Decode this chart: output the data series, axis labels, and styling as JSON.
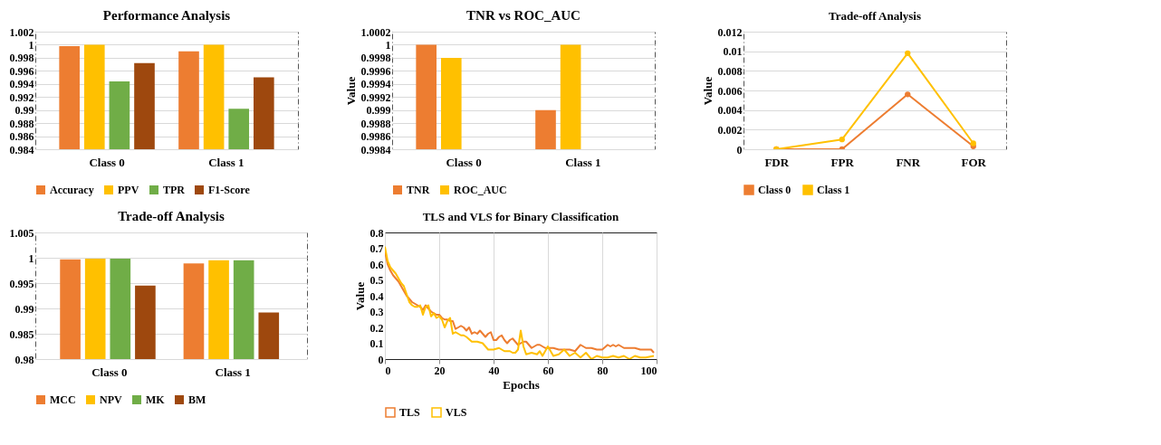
{
  "chart_data": [
    {
      "type": "bar",
      "title": "Performance Analysis",
      "categories": [
        "Class 0",
        "Class 1"
      ],
      "series": [
        {
          "name": "Accuracy",
          "color": "#ed7d31",
          "values": [
            0.9998,
            0.999
          ]
        },
        {
          "name": "PPV",
          "color": "#ffc000",
          "values": [
            1,
            1
          ]
        },
        {
          "name": "TPR",
          "color": "#70ad47",
          "values": [
            0.9944,
            0.9902
          ]
        },
        {
          "name": "F1-Score",
          "color": "#9e480e",
          "values": [
            0.9972,
            0.995
          ]
        }
      ],
      "ylim": [
        0.984,
        1.002
      ],
      "yticks": [
        0.984,
        0.986,
        0.988,
        0.99,
        0.992,
        0.994,
        0.996,
        0.998,
        1,
        1.002
      ],
      "grid": "y",
      "legend": "bottom"
    },
    {
      "type": "bar",
      "title": "TNR vs ROC_AUC",
      "ylabel": "Value",
      "categories": [
        "Class 0",
        "Class 1"
      ],
      "series": [
        {
          "name": "TNR",
          "color": "#ed7d31",
          "values": [
            1,
            0.999
          ]
        },
        {
          "name": "ROC_AUC",
          "color": "#ffc000",
          "values": [
            0.9998,
            1
          ]
        }
      ],
      "ylim": [
        0.9984,
        1.0002
      ],
      "yticks": [
        0.9984,
        0.9986,
        0.9988,
        0.999,
        0.9992,
        0.9994,
        0.9996,
        0.9998,
        1,
        1.0002
      ],
      "grid": "y",
      "legend": "bottom"
    },
    {
      "type": "line",
      "title": "Trade-off Analysis",
      "ylabel": "Value",
      "categories": [
        "FDR",
        "FPR",
        "FNR",
        "FOR"
      ],
      "series": [
        {
          "name": "Class 0",
          "color": "#ed7d31",
          "values": [
            0,
            0,
            0.0056,
            0.0003
          ]
        },
        {
          "name": "Class 1",
          "color": "#ffc000",
          "values": [
            0,
            0.001,
            0.0098,
            0.0006
          ]
        }
      ],
      "ylim": [
        0,
        0.012
      ],
      "yticks": [
        0,
        0.002,
        0.004,
        0.006,
        0.008,
        0.01,
        0.012
      ],
      "grid": "y",
      "legend": "bottom",
      "marker": "circle"
    },
    {
      "type": "bar",
      "title": "Trade-off Analysis",
      "categories": [
        "Class 0",
        "Class 1"
      ],
      "series": [
        {
          "name": "MCC",
          "color": "#ed7d31",
          "values": [
            0.9997,
            0.9989
          ]
        },
        {
          "name": "NPV",
          "color": "#ffc000",
          "values": [
            0.9998,
            0.9995
          ]
        },
        {
          "name": "MK",
          "color": "#70ad47",
          "values": [
            0.9998,
            0.9995
          ]
        },
        {
          "name": "BM",
          "color": "#9e480e",
          "values": [
            0.9945,
            0.9892
          ]
        }
      ],
      "ylim": [
        0.98,
        1.005
      ],
      "yticks": [
        0.98,
        0.985,
        0.99,
        0.995,
        1,
        1.005
      ],
      "grid": "y",
      "legend": "bottom"
    },
    {
      "type": "line",
      "title": "TLS and VLS for Binary Classification",
      "xlabel": "Epochs",
      "ylabel": "Value",
      "series": [
        {
          "name": "TLS",
          "color": "#ed7d31",
          "x": [
            0,
            1,
            2,
            3,
            4,
            5,
            6,
            7,
            8,
            9,
            10,
            11,
            12,
            13,
            14,
            15,
            16,
            17,
            18,
            19,
            20,
            21,
            22,
            23,
            24,
            25,
            26,
            27,
            28,
            29,
            30,
            31,
            32,
            33,
            34,
            35,
            36,
            37,
            38,
            39,
            40,
            41,
            42,
            43,
            44,
            45,
            46,
            47,
            48,
            49,
            50,
            51,
            52,
            53,
            54,
            55,
            56,
            57,
            58,
            59,
            60,
            62,
            64,
            66,
            68,
            70,
            72,
            73,
            74,
            76,
            78,
            80,
            82,
            83,
            84,
            85,
            86,
            88,
            90,
            92,
            94,
            96,
            98,
            99
          ],
          "values": [
            0.68,
            0.6,
            0.56,
            0.53,
            0.51,
            0.49,
            0.46,
            0.43,
            0.4,
            0.38,
            0.36,
            0.35,
            0.34,
            0.33,
            0.31,
            0.34,
            0.32,
            0.3,
            0.29,
            0.28,
            0.28,
            0.26,
            0.25,
            0.25,
            0.24,
            0.24,
            0.19,
            0.2,
            0.21,
            0.2,
            0.18,
            0.2,
            0.16,
            0.17,
            0.16,
            0.18,
            0.16,
            0.14,
            0.16,
            0.17,
            0.12,
            0.12,
            0.14,
            0.15,
            0.12,
            0.1,
            0.12,
            0.13,
            0.11,
            0.09,
            0.1,
            0.11,
            0.11,
            0.09,
            0.07,
            0.08,
            0.09,
            0.09,
            0.08,
            0.07,
            0.07,
            0.07,
            0.06,
            0.06,
            0.06,
            0.05,
            0.09,
            0.08,
            0.07,
            0.07,
            0.06,
            0.06,
            0.09,
            0.08,
            0.09,
            0.08,
            0.09,
            0.07,
            0.07,
            0.07,
            0.06,
            0.06,
            0.06,
            0.04
          ]
        },
        {
          "name": "VLS",
          "color": "#ffc000",
          "x": [
            0,
            1,
            2,
            3,
            4,
            5,
            6,
            7,
            8,
            9,
            10,
            11,
            12,
            13,
            14,
            15,
            16,
            17,
            18,
            19,
            20,
            21,
            22,
            23,
            24,
            25,
            26,
            27,
            28,
            29,
            30,
            32,
            34,
            36,
            38,
            40,
            42,
            44,
            46,
            47,
            48,
            49,
            50,
            51,
            52,
            54,
            56,
            57,
            58,
            60,
            62,
            64,
            66,
            68,
            70,
            72,
            74,
            76,
            78,
            80,
            82,
            84,
            86,
            88,
            90,
            92,
            94,
            96,
            99
          ],
          "values": [
            0.71,
            0.62,
            0.58,
            0.56,
            0.54,
            0.51,
            0.48,
            0.46,
            0.41,
            0.36,
            0.34,
            0.33,
            0.33,
            0.34,
            0.28,
            0.33,
            0.34,
            0.27,
            0.29,
            0.26,
            0.27,
            0.25,
            0.2,
            0.24,
            0.26,
            0.16,
            0.17,
            0.16,
            0.15,
            0.15,
            0.14,
            0.11,
            0.11,
            0.1,
            0.06,
            0.06,
            0.07,
            0.05,
            0.05,
            0.04,
            0.04,
            0.06,
            0.18,
            0.08,
            0.03,
            0.04,
            0.03,
            0.05,
            0.02,
            0.08,
            0.02,
            0.03,
            0.06,
            0.02,
            0.04,
            0.01,
            0.04,
            0,
            0.02,
            0.01,
            0.01,
            0.02,
            0.01,
            0.02,
            0,
            0.02,
            0.01,
            0.01,
            0.02
          ]
        }
      ],
      "xlim": [
        0,
        100
      ],
      "xticks": [
        0,
        20,
        40,
        60,
        80,
        100
      ],
      "ylim": [
        0,
        0.8
      ],
      "yticks": [
        0,
        0.1,
        0.2,
        0.3,
        0.4,
        0.5,
        0.6,
        0.7,
        0.8
      ],
      "grid": "x",
      "legend": "bottom"
    }
  ]
}
